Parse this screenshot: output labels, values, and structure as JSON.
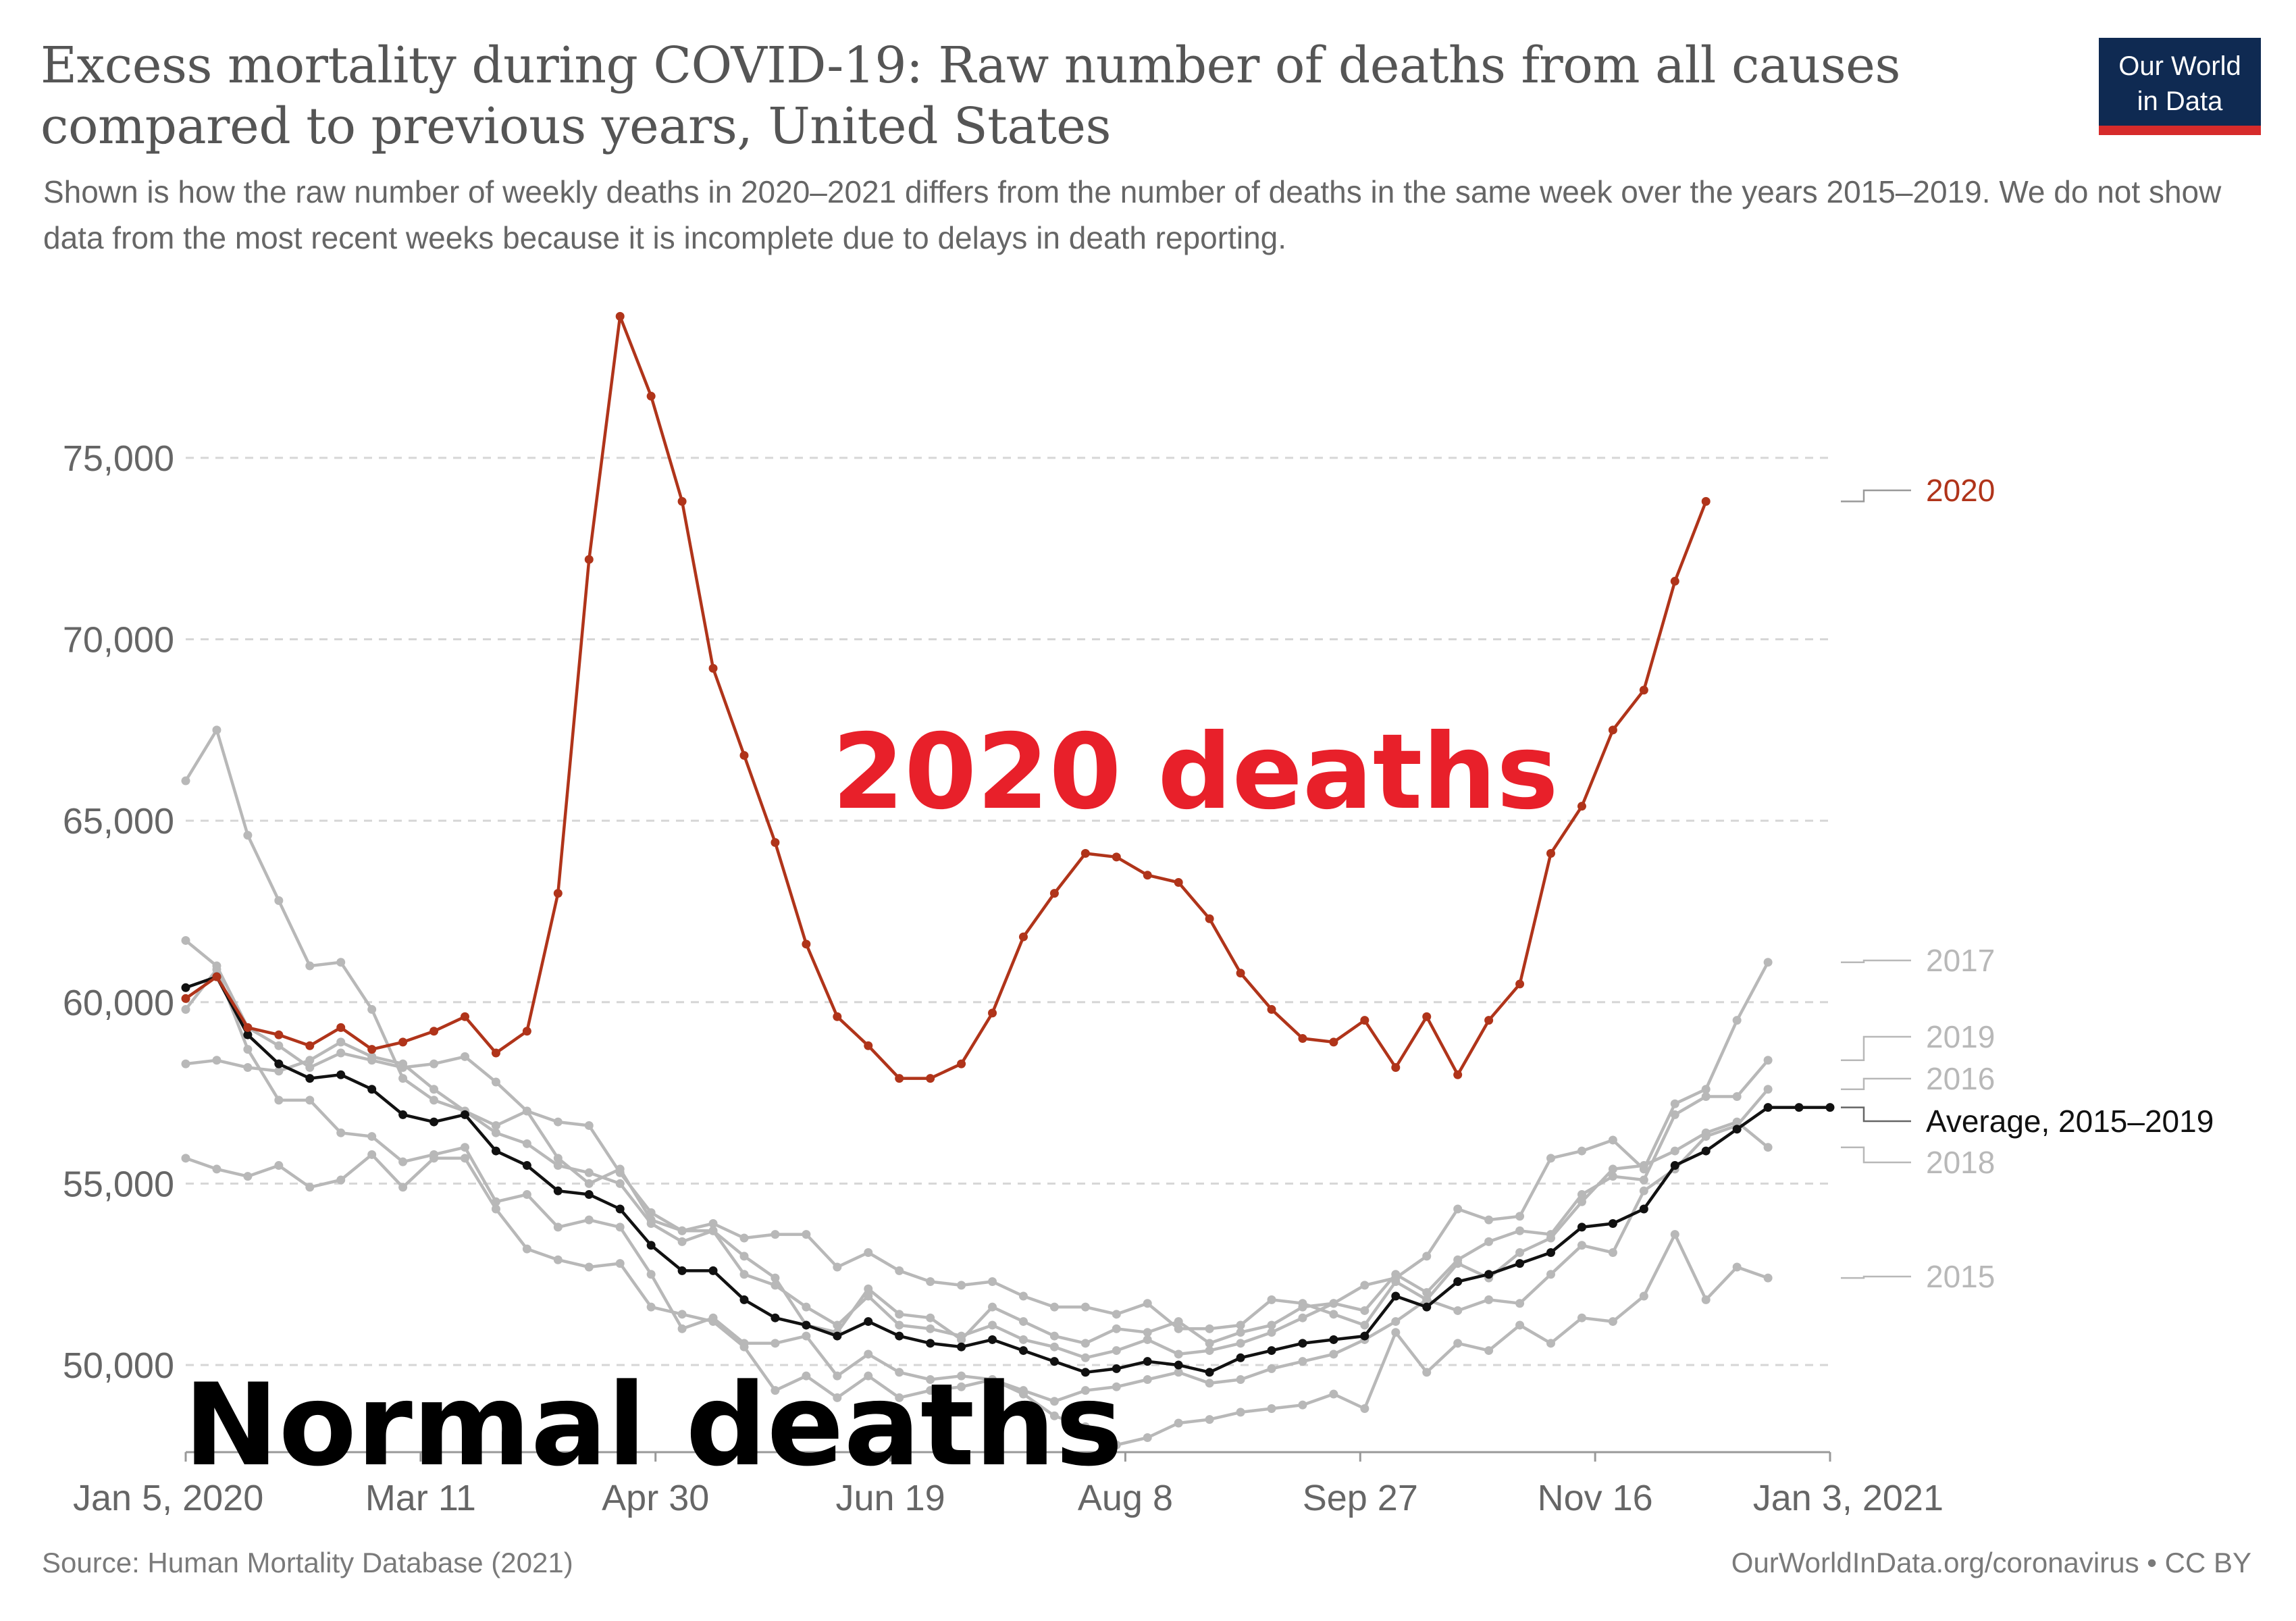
{
  "header": {
    "title": "Excess mortality during COVID-19: Raw number of deaths from all causes compared to previous years, United States",
    "subtitle": "Shown is how the raw number of weekly deaths in 2020–2021 differs from the number of deaths in the same week over the years 2015–2019. We do not show data from the most recent weeks because it is incomplete due to delays in death reporting.",
    "logo_line1": "Our World",
    "logo_line2": "in Data"
  },
  "footer": {
    "source": "Source: Human Mortality Database (2021)",
    "credit": "OurWorldInData.org/coronavirus • CC BY"
  },
  "annotations": {
    "red": "2020 deaths",
    "black": "Normal deaths"
  },
  "chart_data": {
    "type": "line",
    "title": "Excess mortality during COVID-19: Raw number of deaths from all causes compared to previous years, United States",
    "xlabel": "",
    "ylabel": "",
    "x_ticks": [
      "Jan 5, 2020",
      "Mar 11",
      "Apr 30",
      "Jun 19",
      "Aug 8",
      "Sep 27",
      "Nov 16",
      "Jan 3, 2021"
    ],
    "y_ticks": [
      50000,
      55000,
      60000,
      65000,
      70000,
      75000
    ],
    "y_tick_labels": [
      "50,000",
      "55,000",
      "60,000",
      "65,000",
      "70,000",
      "75,000"
    ],
    "ylim": [
      47600,
      79800
    ],
    "x_unit": "week",
    "xlim": [
      1,
      54
    ],
    "grid": true,
    "legend": "labels at right end of lines",
    "colors": {
      "2020": "#b0341a",
      "average": "#111111",
      "prior_years": "#b8b8b8",
      "grid": "#d6d6d6"
    },
    "series": [
      {
        "name": "2020",
        "label": "2020",
        "color": "#b0341a",
        "values": [
          60100,
          60700,
          59300,
          59100,
          58800,
          59300,
          58700,
          58900,
          59200,
          59600,
          58600,
          59200,
          63000,
          72200,
          78900,
          76700,
          73800,
          69200,
          66800,
          64400,
          61600,
          59600,
          58800,
          57900,
          57900,
          58300,
          59700,
          61800,
          63000,
          64100,
          64000,
          63500,
          63300,
          62300,
          60800,
          59800,
          59000,
          58900,
          59500,
          58200,
          59600,
          58000,
          59500,
          60500,
          64100,
          65400,
          67500,
          68600,
          71600,
          73800
        ]
      },
      {
        "name": "Average, 2015–2019",
        "label": "Average, 2015–2019",
        "color": "#111111",
        "values": [
          60400,
          60700,
          59100,
          58300,
          57900,
          58000,
          57600,
          56900,
          56700,
          56900,
          55900,
          55500,
          54800,
          54700,
          54300,
          53300,
          52600,
          52600,
          51800,
          51300,
          51100,
          50800,
          51200,
          50800,
          50600,
          50500,
          50700,
          50400,
          50100,
          49800,
          49900,
          50100,
          50000,
          49800,
          50200,
          50400,
          50600,
          50700,
          50800,
          51900,
          51600,
          52300,
          52500,
          52800,
          53100,
          53800,
          53900,
          54300,
          55500,
          55900,
          56500,
          57100,
          57100,
          57100
        ]
      },
      {
        "name": "2015",
        "label": "2015",
        "color": "#b8b8b8",
        "values": [
          55700,
          55400,
          55200,
          55500,
          54900,
          55100,
          55800,
          54900,
          55700,
          55700,
          54300,
          53200,
          52900,
          52700,
          52800,
          51600,
          51400,
          51200,
          50500,
          49300,
          49700,
          49100,
          49700,
          49100,
          49300,
          49400,
          49600,
          49200,
          48600,
          48300,
          47800,
          48000,
          48400,
          48500,
          48700,
          48800,
          48900,
          49200,
          48800,
          50900,
          49800,
          50600,
          50400,
          51100,
          50600,
          51300,
          51200,
          51900,
          53600,
          51800,
          52700,
          52400
        ]
      },
      {
        "name": "2016",
        "label": "2016",
        "color": "#b8b8b8",
        "values": [
          59800,
          60900,
          58700,
          57300,
          57300,
          56400,
          56300,
          55600,
          55800,
          56000,
          54500,
          54700,
          53800,
          54000,
          53800,
          52500,
          51000,
          51300,
          50600,
          50600,
          50800,
          49700,
          50300,
          49800,
          49600,
          49700,
          49600,
          49300,
          49000,
          49300,
          49400,
          49600,
          49800,
          49500,
          49600,
          49900,
          50100,
          50300,
          50700,
          51200,
          51800,
          51500,
          51800,
          51700,
          52500,
          53300,
          53100,
          54800,
          55400,
          56300,
          56600,
          57600
        ]
      },
      {
        "name": "2017",
        "label": "2017",
        "color": "#b8b8b8",
        "values": [
          66100,
          67500,
          64600,
          62800,
          61000,
          61100,
          59800,
          57900,
          57300,
          57000,
          56600,
          57000,
          56700,
          56600,
          55300,
          54200,
          53700,
          53700,
          53000,
          52400,
          51100,
          50900,
          52100,
          51400,
          51300,
          50700,
          51600,
          51200,
          50800,
          50600,
          51000,
          50900,
          51200,
          50600,
          50900,
          51100,
          51600,
          51700,
          52200,
          52400,
          53000,
          54300,
          54000,
          54100,
          55700,
          55900,
          56200,
          55400,
          57200,
          57600,
          59500,
          61100
        ]
      },
      {
        "name": "2018",
        "label": "2018",
        "color": "#b8b8b8",
        "values": [
          61700,
          61000,
          59300,
          58800,
          58200,
          58600,
          58400,
          58200,
          58300,
          58500,
          57800,
          57000,
          55700,
          55000,
          55400,
          54000,
          53700,
          53900,
          53500,
          53600,
          53600,
          52700,
          53100,
          52600,
          52300,
          52200,
          52300,
          51900,
          51600,
          51600,
          51400,
          51700,
          51000,
          51000,
          51100,
          51800,
          51700,
          51400,
          51100,
          52300,
          51800,
          52800,
          52400,
          53100,
          53500,
          54500,
          55400,
          55500,
          55900,
          56400,
          56700,
          56000
        ]
      },
      {
        "name": "2019",
        "label": "2019",
        "color": "#b8b8b8",
        "values": [
          58300,
          58400,
          58200,
          58100,
          58400,
          58900,
          58500,
          58300,
          57600,
          57000,
          56400,
          56100,
          55500,
          55300,
          55000,
          53900,
          53400,
          53700,
          52500,
          52200,
          51600,
          51100,
          51900,
          51100,
          51000,
          50800,
          51100,
          50700,
          50500,
          50200,
          50400,
          50700,
          50300,
          50400,
          50600,
          50900,
          51300,
          51700,
          51500,
          52500,
          52000,
          52900,
          53400,
          53700,
          53600,
          54700,
          55200,
          55100,
          56900,
          57400,
          57400,
          58400
        ]
      }
    ]
  }
}
